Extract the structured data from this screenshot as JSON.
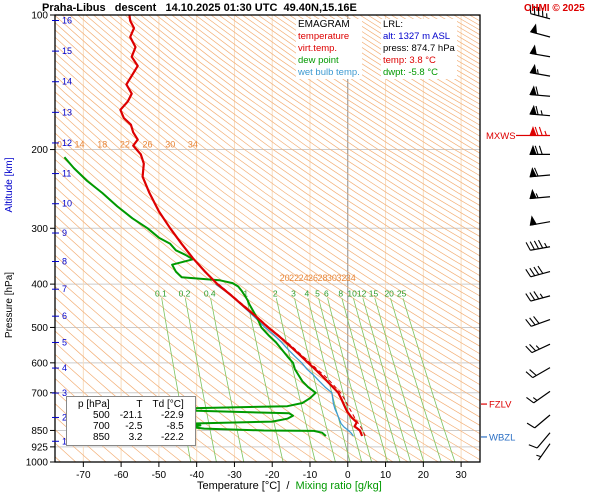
{
  "header": {
    "title": "Praha-Libus   descent   14.10.2025 01:30 UTC  49.40N,15.16E",
    "copyright": "CHMI © 2025",
    "copyright_color": "#dd0000"
  },
  "legend": {
    "title": "EMAGRAM",
    "items": [
      {
        "label": "temperature",
        "color": "#dd0000"
      },
      {
        "label": "virt.temp.",
        "color": "#dd0000"
      },
      {
        "label": "dew point",
        "color": "#009900"
      },
      {
        "label": "wet bulb temp.",
        "color": "#3d9ad1"
      }
    ]
  },
  "lrl": {
    "title": "LRL:",
    "lines": [
      {
        "text": "alt: 1327 m ASL",
        "color": "#0000cc"
      },
      {
        "text": "press: 874.7 hPa",
        "color": "#000000"
      },
      {
        "text": "temp: 3.8 °C",
        "color": "#dd0000"
      },
      {
        "text": "dwpt: -5.8 °C",
        "color": "#009900"
      }
    ]
  },
  "table": {
    "headers": [
      "p [hPa]",
      "T",
      "Td [°C]"
    ],
    "rows": [
      [
        "500",
        "-21.1",
        "-22.9"
      ],
      [
        "700",
        "-2.5",
        "-8.5"
      ],
      [
        "850",
        "3.2",
        "-22.2"
      ]
    ]
  },
  "axes": {
    "pressure_label": "Pressure [hPa]",
    "altitude_label": "Altitude [km]",
    "altitude_color": "#0000cc",
    "x_label_temp": "Temperature [°C]",
    "x_label_sep": "  /  ",
    "x_label_mix": "Mixing ratio [g/kg]",
    "mix_color": "#009900",
    "pressure_ticks": [
      100,
      200,
      300,
      400,
      500,
      600,
      700,
      850,
      925,
      1000
    ],
    "altitude_ticks": [
      1,
      2,
      3,
      4,
      5,
      6,
      7,
      8,
      9,
      10,
      11,
      12,
      13,
      14,
      15,
      16
    ],
    "temp_ticks": [
      -70,
      -60,
      -50,
      -40,
      -30,
      -20,
      -10,
      0,
      10,
      20,
      30
    ]
  },
  "side_labels": [
    {
      "text": "MXWS",
      "pressure": 186,
      "color": "#dd0000",
      "dash": "right"
    },
    {
      "text": "FZLV",
      "pressure": 742,
      "color": "#dd0000",
      "dash": "left"
    },
    {
      "text": "WBZL",
      "pressure": 879,
      "color": "#2b6fc4",
      "dash": "left"
    }
  ],
  "chart_data": {
    "type": "line",
    "diagram": "emagram-sounding",
    "station": "Praha-Libus",
    "profile_type": "descent",
    "datetime_utc": "14.10.2025 01:30 UTC",
    "location": "49.40N,15.16E",
    "x_axis": {
      "label": "Temperature [°C]",
      "min": -77.5,
      "max": 35,
      "ticks": [
        -70,
        -60,
        -50,
        -40,
        -30,
        -20,
        -10,
        0,
        10,
        20,
        30
      ]
    },
    "y_axis": {
      "label": "Pressure [hPa]",
      "scale": "log",
      "min": 100,
      "max": 1000,
      "ticks": [
        100,
        200,
        300,
        400,
        500,
        600,
        700,
        850,
        925,
        1000
      ]
    },
    "surface": {
      "alt_m_asl": 1327,
      "pressure_hpa": 874.7,
      "temp_c": 3.8,
      "dewpoint_c": -5.8
    },
    "level_table": {
      "pressures": [
        500,
        700,
        850
      ],
      "T": [
        -21.1,
        -2.5,
        3.2
      ],
      "Td": [
        -22.9,
        -8.5,
        -22.2
      ]
    },
    "mixing_ratio_lines_gkg": [
      0.1,
      0.2,
      0.4,
      1,
      2,
      3,
      4,
      5,
      6,
      8,
      10,
      12,
      15,
      20,
      25
    ],
    "adiabat_label_rows": [
      {
        "pressure": 195,
        "labels": [
          "10",
          "14",
          "18",
          "22",
          "26",
          "30",
          "34"
        ],
        "temps": [
          -77,
          -71,
          -65,
          -59,
          -53,
          -47,
          -41
        ]
      },
      {
        "pressure": 388,
        "labels": [
          "20",
          "22",
          "24",
          "26",
          "28",
          "30",
          "32",
          "34"
        ],
        "temps": [
          -16.7,
          -14.2,
          -11.7,
          -9.2,
          -6.7,
          -4.2,
          -1.7,
          0.8
        ]
      }
    ],
    "series": [
      {
        "name": "temperature",
        "color": "#dd0000",
        "width": 2.2,
        "dash": "",
        "points": [
          [
            874.7,
            3.8
          ],
          [
            850,
            3.2
          ],
          [
            832,
            1.8
          ],
          [
            815,
            2.4
          ],
          [
            795,
            1.0
          ],
          [
            770,
            -0.2
          ],
          [
            745,
            -1.0
          ],
          [
            720,
            -1.8
          ],
          [
            700,
            -2.5
          ],
          [
            675,
            -4.3
          ],
          [
            650,
            -6.2
          ],
          [
            625,
            -8.2
          ],
          [
            600,
            -10.5
          ],
          [
            575,
            -12.8
          ],
          [
            550,
            -15.3
          ],
          [
            525,
            -18.0
          ],
          [
            500,
            -21.1
          ],
          [
            475,
            -24.0
          ],
          [
            450,
            -27.3
          ],
          [
            425,
            -30.7
          ],
          [
            400,
            -34.5
          ],
          [
            375,
            -37.8
          ],
          [
            350,
            -41.0
          ],
          [
            325,
            -44.0
          ],
          [
            300,
            -47.0
          ],
          [
            275,
            -50.0
          ],
          [
            250,
            -52.5
          ],
          [
            230,
            -54.3
          ],
          [
            215,
            -54.0
          ],
          [
            205,
            -54.8
          ],
          [
            196,
            -56.8
          ],
          [
            190,
            -55.6
          ],
          [
            183,
            -56.8
          ],
          [
            176,
            -57.4
          ],
          [
            170,
            -59.3
          ],
          [
            163,
            -60.2
          ],
          [
            156,
            -58.2
          ],
          [
            150,
            -57.2
          ],
          [
            143,
            -58.6
          ],
          [
            136,
            -57.0
          ],
          [
            130,
            -55.6
          ],
          [
            124,
            -57.2
          ],
          [
            118,
            -56.2
          ],
          [
            112,
            -57.6
          ],
          [
            107,
            -56.6
          ],
          [
            103,
            -57.6
          ],
          [
            100,
            -57.8
          ]
        ]
      },
      {
        "name": "virtual temperature",
        "color": "#dd0000",
        "width": 1,
        "dash": "4 3",
        "points": [
          [
            874.7,
            4.6
          ],
          [
            850,
            4.0
          ],
          [
            820,
            2.8
          ],
          [
            790,
            1.6
          ],
          [
            760,
            0.5
          ],
          [
            730,
            -0.6
          ],
          [
            700,
            -1.9
          ],
          [
            650,
            -5.4
          ],
          [
            600,
            -10.0
          ],
          [
            550,
            -14.9
          ],
          [
            500,
            -20.8
          ],
          [
            450,
            -27.0
          ],
          [
            400,
            -34.2
          ]
        ]
      },
      {
        "name": "dew point",
        "color": "#009900",
        "width": 2,
        "dash": "",
        "points": [
          [
            874.7,
            -5.8
          ],
          [
            860,
            -6.8
          ],
          [
            852,
            -9.0
          ],
          [
            850,
            -22.2
          ],
          [
            842,
            -38.0
          ],
          [
            835,
            -41.5
          ],
          [
            828,
            -39.0
          ],
          [
            820,
            -41.0
          ],
          [
            812,
            -20.0
          ],
          [
            800,
            -16.0
          ],
          [
            788,
            -14.5
          ],
          [
            778,
            -15.5
          ],
          [
            768,
            -40.0
          ],
          [
            758,
            -41.5
          ],
          [
            750,
            -16.0
          ],
          [
            738,
            -12.0
          ],
          [
            720,
            -10.0
          ],
          [
            700,
            -8.5
          ],
          [
            680,
            -10.5
          ],
          [
            660,
            -12.0
          ],
          [
            640,
            -13.0
          ],
          [
            620,
            -14.0
          ],
          [
            600,
            -14.5
          ],
          [
            580,
            -16.0
          ],
          [
            560,
            -17.5
          ],
          [
            540,
            -19.0
          ],
          [
            520,
            -21.0
          ],
          [
            500,
            -22.9
          ],
          [
            480,
            -23.8
          ],
          [
            460,
            -25.0
          ],
          [
            445,
            -26.0
          ],
          [
            435,
            -26.5
          ],
          [
            425,
            -27.2
          ],
          [
            415,
            -28.0
          ],
          [
            405,
            -29.0
          ],
          [
            398,
            -30.5
          ],
          [
            392,
            -34.0
          ],
          [
            386,
            -44.0
          ],
          [
            375,
            -45.5
          ],
          [
            362,
            -46.5
          ],
          [
            352,
            -41.0
          ],
          [
            344,
            -43.0
          ],
          [
            336,
            -45.5
          ],
          [
            325,
            -47.0
          ],
          [
            315,
            -50.0
          ],
          [
            300,
            -53.0
          ],
          [
            285,
            -57.0
          ],
          [
            268,
            -61.0
          ],
          [
            250,
            -65.0
          ],
          [
            235,
            -69.0
          ],
          [
            220,
            -72.5
          ],
          [
            208,
            -75.0
          ]
        ]
      },
      {
        "name": "wet bulb temperature",
        "color": "#3d9ad1",
        "width": 1.3,
        "dash": "",
        "points": [
          [
            874.7,
            1.5
          ],
          [
            860,
            0.8
          ],
          [
            850,
            0.2
          ],
          [
            835,
            -1.0
          ],
          [
            820,
            -1.8
          ],
          [
            800,
            -2.3
          ],
          [
            780,
            -2.8
          ],
          [
            760,
            -3.4
          ],
          [
            740,
            -3.8
          ],
          [
            720,
            -4.0
          ],
          [
            700,
            -4.2
          ],
          [
            680,
            -6.0
          ],
          [
            660,
            -7.5
          ],
          [
            640,
            -9.0
          ],
          [
            620,
            -10.8
          ],
          [
            600,
            -12.2
          ],
          [
            580,
            -14.0
          ],
          [
            560,
            -15.8
          ],
          [
            540,
            -17.5
          ],
          [
            520,
            -19.5
          ],
          [
            500,
            -21.9
          ],
          [
            480,
            -24.0
          ],
          [
            460,
            -26.3
          ],
          [
            440,
            -28.8
          ],
          [
            420,
            -31.5
          ],
          [
            400,
            -35.0
          ]
        ]
      }
    ],
    "wind_barbs": [
      {
        "p": 102,
        "dir": 285,
        "spd": 45
      },
      {
        "p": 112,
        "dir": 285,
        "spd": 50
      },
      {
        "p": 124,
        "dir": 280,
        "spd": 50
      },
      {
        "p": 137,
        "dir": 280,
        "spd": 55
      },
      {
        "p": 152,
        "dir": 275,
        "spd": 60
      },
      {
        "p": 168,
        "dir": 275,
        "spd": 65
      },
      {
        "p": 186,
        "dir": 270,
        "spd": 75,
        "color": "#dd0000"
      },
      {
        "p": 205,
        "dir": 270,
        "spd": 70
      },
      {
        "p": 228,
        "dir": 265,
        "spd": 60
      },
      {
        "p": 255,
        "dir": 265,
        "spd": 55
      },
      {
        "p": 290,
        "dir": 260,
        "spd": 50
      },
      {
        "p": 330,
        "dir": 260,
        "spd": 45
      },
      {
        "p": 375,
        "dir": 255,
        "spd": 40
      },
      {
        "p": 425,
        "dir": 255,
        "spd": 35
      },
      {
        "p": 480,
        "dir": 250,
        "spd": 30
      },
      {
        "p": 545,
        "dir": 245,
        "spd": 25
      },
      {
        "p": 615,
        "dir": 240,
        "spd": 20
      },
      {
        "p": 695,
        "dir": 235,
        "spd": 15
      },
      {
        "p": 785,
        "dir": 230,
        "spd": 10
      },
      {
        "p": 860,
        "dir": 220,
        "spd": 10
      },
      {
        "p": 910,
        "dir": 215,
        "spd": 5
      }
    ],
    "background": {
      "adiabat_color": "#f3b078",
      "isotherm_color": "#f8ddc0",
      "zero_isotherm_color": "#888888",
      "grid_color": "#cccccc",
      "mixline_color": "#7cc25e",
      "adiabat_label_color": "#e8873a",
      "mix_label_color": "#2e9e2e"
    }
  }
}
